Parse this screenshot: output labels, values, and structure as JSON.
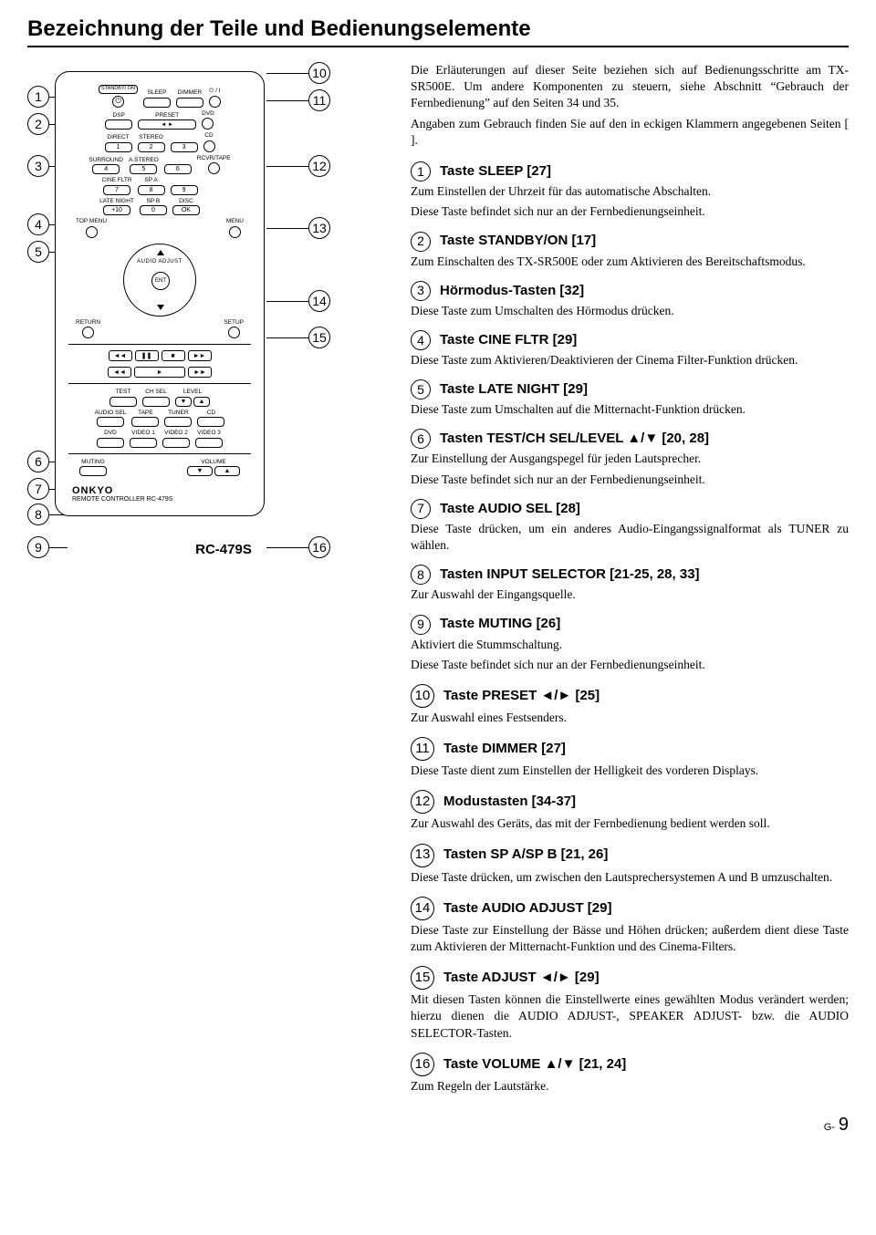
{
  "title": "Bezeichnung der Teile und Bedienungselemente",
  "intro": [
    "Die Erläuterungen auf dieser Seite beziehen sich auf Bedienungsschritte am TX-SR500E. Um andere Komponenten zu steuern, siehe Abschnitt “Gebrauch der Fernbedienung” auf den Seiten 34 und 35.",
    "Angaben zum Gebrauch finden Sie auf den in eckigen Klammern angegebenen Seiten [ ]."
  ],
  "items": [
    {
      "n": "1",
      "title": "Taste SLEEP [27]",
      "desc": "Zum Einstellen der Uhrzeit für das automatische Abschalten.\nDiese Taste befindet sich nur an der Fernbedienungseinheit."
    },
    {
      "n": "2",
      "title": "Taste STANDBY/ON [17]",
      "desc": "Zum Einschalten des TX-SR500E oder zum Aktivieren des Bereitschaftsmodus."
    },
    {
      "n": "3",
      "title": "Hörmodus-Tasten [32]",
      "desc": "Diese Taste zum Umschalten des Hörmodus drücken."
    },
    {
      "n": "4",
      "title": "Taste CINE FLTR [29]",
      "desc": "Diese Taste zum Aktivieren/Deaktivieren der Cinema Filter-Funktion drücken."
    },
    {
      "n": "5",
      "title": "Taste LATE NIGHT [29]",
      "desc": "Diese Taste zum Umschalten auf die Mitternacht-Funktion drücken."
    },
    {
      "n": "6",
      "title": "Tasten TEST/CH SEL/LEVEL ▲/▼ [20, 28]",
      "desc": "Zur Einstellung der Ausgangspegel für jeden Lautsprecher.\nDiese Taste befindet sich nur an der Fernbedienungseinheit."
    },
    {
      "n": "7",
      "title": "Taste AUDIO SEL [28]",
      "desc": "Diese Taste drücken, um ein anderes Audio-Eingangssignalformat als TUNER zu wählen."
    },
    {
      "n": "8",
      "title": "Tasten INPUT SELECTOR [21-25, 28, 33]",
      "desc": "Zur Auswahl der Eingangsquelle."
    },
    {
      "n": "9",
      "title": "Taste MUTING [26]",
      "desc": "Aktiviert die Stummschaltung.\nDiese Taste befindet sich nur an der Fernbedienungseinheit."
    },
    {
      "n": "10",
      "title": "Taste PRESET ◄/► [25]",
      "desc": "Zur Auswahl eines Festsenders."
    },
    {
      "n": "11",
      "title": "Taste DIMMER [27]",
      "desc": "Diese Taste dient zum Einstellen der Helligkeit des vorderen Displays."
    },
    {
      "n": "12",
      "title": "Modustasten [34-37]",
      "desc": "Zur Auswahl des Geräts, das mit der Fernbedienung bedient werden soll."
    },
    {
      "n": "13",
      "title": "Tasten SP A/SP B [21, 26]",
      "desc": "Diese Taste drücken, um zwischen den Lautsprechersystemen A und B umzuschalten."
    },
    {
      "n": "14",
      "title": "Taste AUDIO ADJUST [29]",
      "desc": "Diese Taste zur Einstellung der Bässe und Höhen drücken; außerdem dient diese Taste zum Aktivieren der Mitternacht-Funktion und des Cinema-Filters."
    },
    {
      "n": "15",
      "title": "Taste ADJUST ◄/► [29]",
      "desc": "Mit diesen Tasten können die Einstellwerte eines gewählten Modus verändert werden; hierzu dienen die AUDIO ADJUST-, SPEAKER ADJUST- bzw. die AUDIO SELECTOR-Tasten."
    },
    {
      "n": "16",
      "title": "Taste VOLUME ▲/▼ [21, 24]",
      "desc": "Zum Regeln der Lautstärke."
    }
  ],
  "remote": {
    "row1": [
      "STANDBY/\nON",
      "SLEEP",
      "DIMMER",
      "⏻ / I"
    ],
    "row2": [
      "DSP",
      "PRESET",
      "",
      "DVD"
    ],
    "row3": [
      "DIRECT",
      "STEREO",
      "",
      "CD"
    ],
    "row3b": [
      "1",
      "2",
      "3",
      ""
    ],
    "row4": [
      "SURROUND",
      "A.STEREO",
      "",
      "RCVR/TAPE"
    ],
    "row4b": [
      "4",
      "5",
      "6",
      ""
    ],
    "row5": [
      "CINE FLTR",
      "SP A",
      "",
      ""
    ],
    "row5b": [
      "7",
      "8",
      "9",
      ""
    ],
    "row6": [
      "LATE NIGHT",
      "SP B",
      "DISC",
      ""
    ],
    "row6b": [
      "+10",
      "0",
      "OK",
      ""
    ],
    "row7": [
      "TOP MENU",
      "",
      "",
      "MENU"
    ],
    "nav": {
      "center": "ENT",
      "arc": "AUDIO ADJUST"
    },
    "row8": [
      "RETURN",
      "",
      "",
      "SETUP"
    ],
    "row9": [
      "TEST",
      "CH SEL",
      "LEVEL"
    ],
    "row10": [
      "AUDIO SEL",
      "TAPE",
      "TUNER",
      "CD"
    ],
    "row11": [
      "DVD",
      "VIDEO 1",
      "VIDEO 2",
      "VIDEO 3"
    ],
    "row12": [
      "MUTING",
      "",
      "VOLUME",
      ""
    ],
    "brand": "ONKYO",
    "model": "REMOTE CONTROLLER    RC-479S",
    "caption": "RC-479S"
  },
  "page": {
    "g": "G-",
    "n": "9"
  },
  "callouts_left": [
    "1",
    "2",
    "3",
    "4",
    "5",
    "6",
    "7",
    "8",
    "9"
  ],
  "callouts_right": [
    "10",
    "11",
    "12",
    "13",
    "14",
    "15",
    "16"
  ]
}
